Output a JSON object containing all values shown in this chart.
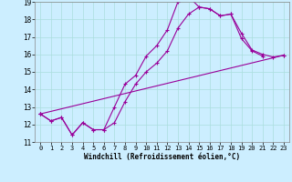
{
  "title": "",
  "xlabel": "Windchill (Refroidissement éolien,°C)",
  "bg_color": "#cceeff",
  "grid_color": "#aadddd",
  "line_color": "#990099",
  "xlim": [
    -0.5,
    23.5
  ],
  "ylim": [
    11,
    19
  ],
  "xticks": [
    0,
    1,
    2,
    3,
    4,
    5,
    6,
    7,
    8,
    9,
    10,
    11,
    12,
    13,
    14,
    15,
    16,
    17,
    18,
    19,
    20,
    21,
    22,
    23
  ],
  "yticks": [
    11,
    12,
    13,
    14,
    15,
    16,
    17,
    18,
    19
  ],
  "line1_x": [
    0,
    1,
    2,
    3,
    4,
    5,
    6,
    7,
    8,
    9,
    10,
    11,
    12,
    13,
    14,
    15,
    16,
    17,
    18,
    19,
    20,
    21
  ],
  "line1_y": [
    12.6,
    12.2,
    12.4,
    11.4,
    12.1,
    11.7,
    11.7,
    13.0,
    14.3,
    14.8,
    15.9,
    16.5,
    17.4,
    19.0,
    19.3,
    18.7,
    18.6,
    18.2,
    18.3,
    16.9,
    16.2,
    15.9
  ],
  "line2_x": [
    0,
    1,
    2,
    3,
    4,
    5,
    6,
    7,
    8,
    9,
    10,
    11,
    12,
    13,
    14,
    15,
    16,
    17,
    18,
    19,
    20,
    21,
    22,
    23
  ],
  "line2_y": [
    12.6,
    12.2,
    12.4,
    11.4,
    12.1,
    11.7,
    11.7,
    12.1,
    13.3,
    14.3,
    15.0,
    15.5,
    16.2,
    17.5,
    18.3,
    18.7,
    18.6,
    18.2,
    18.3,
    17.2,
    16.25,
    16.0,
    15.85,
    15.95
  ],
  "line3_x": [
    0,
    23
  ],
  "line3_y": [
    12.6,
    15.95
  ]
}
